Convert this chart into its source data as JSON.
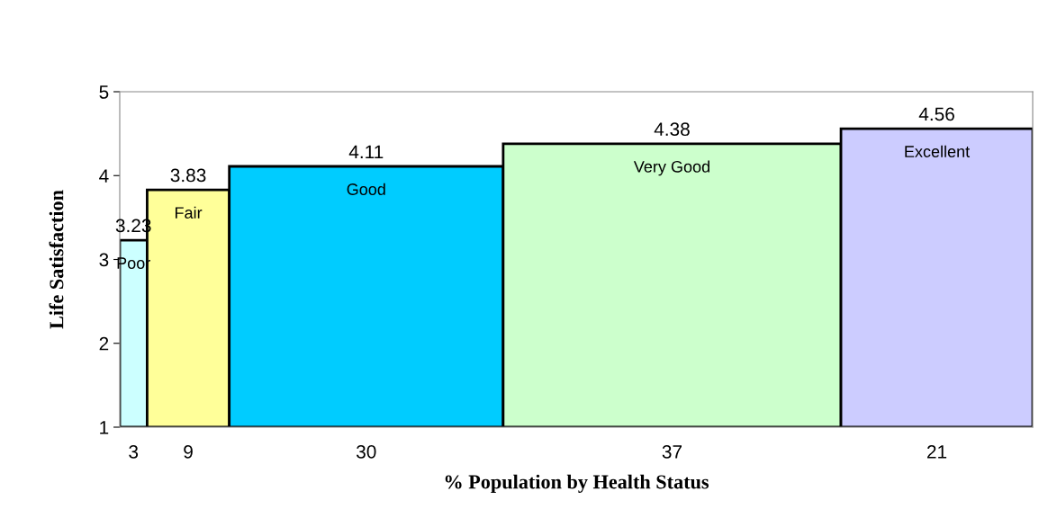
{
  "chart_data": {
    "type": "bar",
    "xlabel": "% Population by Health Status",
    "ylabel": "Life Satisfaction",
    "categories": [
      "3",
      "9",
      "30",
      "37",
      "21"
    ],
    "values": [
      3.23,
      3.83,
      4.11,
      4.38,
      4.56
    ],
    "colors": [
      "#ccffff",
      "#ffff99",
      "#00ccff",
      "#ccffcc",
      "#ccccff"
    ],
    "ylim": [
      1,
      5
    ],
    "yticks": [
      1,
      2,
      3,
      4,
      5
    ],
    "data_labels": true,
    "grid": false,
    "legend": false,
    "annotations": [
      "Poor",
      "Fair",
      "Good",
      "Very Good",
      "Excellent"
    ]
  }
}
